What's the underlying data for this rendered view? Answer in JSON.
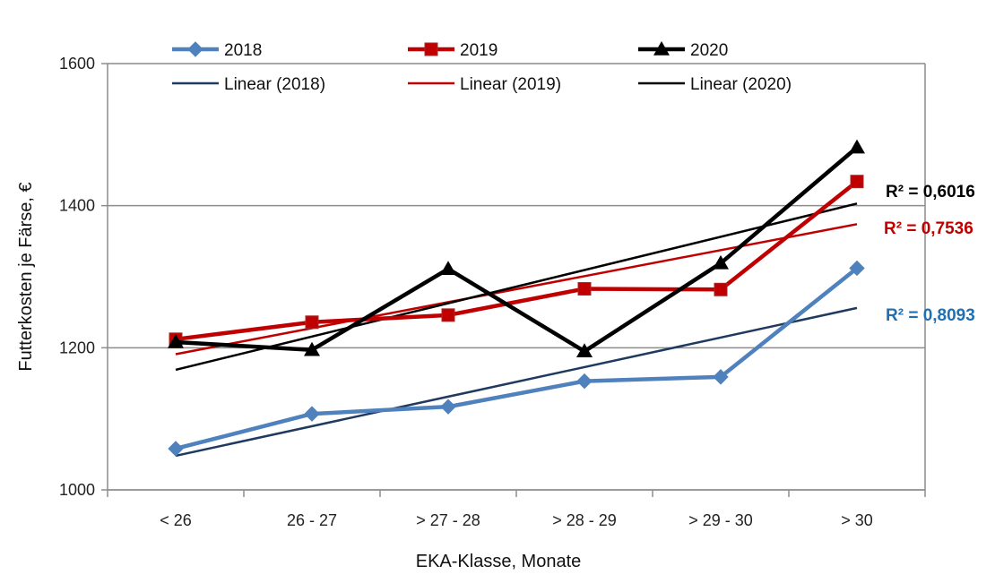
{
  "chart_data": {
    "type": "line",
    "title": "",
    "xlabel": "EKA-Klasse, Monate",
    "ylabel": "Futterkosten je Färse, €",
    "categories": [
      "< 26",
      "26 - 27",
      "> 27 - 28",
      "> 28 - 29",
      "> 29 - 30",
      "> 30"
    ],
    "ylim": [
      1000,
      1600
    ],
    "yticks": [
      "1000",
      "1200",
      "1400",
      "1600"
    ],
    "grid": true,
    "legend_position": "top",
    "series": [
      {
        "name": "2018",
        "values": [
          1058,
          1107,
          1117,
          1153,
          1159,
          1312
        ],
        "color": "#4f81bd",
        "marker": "diamond"
      },
      {
        "name": "2019",
        "values": [
          1212,
          1236,
          1246,
          1283,
          1282,
          1434
        ],
        "color": "#c00000",
        "marker": "square"
      },
      {
        "name": "2020",
        "values": [
          1208,
          1197,
          1311,
          1195,
          1319,
          1482
        ],
        "color": "#000000",
        "marker": "triangle"
      }
    ],
    "trendlines": [
      {
        "name": "Linear (2018)",
        "start": 1048,
        "end": 1256,
        "color": "#1f3a5f",
        "r2_label": "R² = 0,8093",
        "r2_color": "#1f6fb4"
      },
      {
        "name": "Linear (2019)",
        "start": 1191,
        "end": 1374,
        "color": "#c00000",
        "r2_label": "R² = 0,7536",
        "r2_color": "#c00000"
      },
      {
        "name": "Linear (2020)",
        "start": 1169,
        "end": 1403,
        "color": "#000000",
        "r2_label": "R² = 0,6016",
        "r2_color": "#000000"
      }
    ]
  }
}
